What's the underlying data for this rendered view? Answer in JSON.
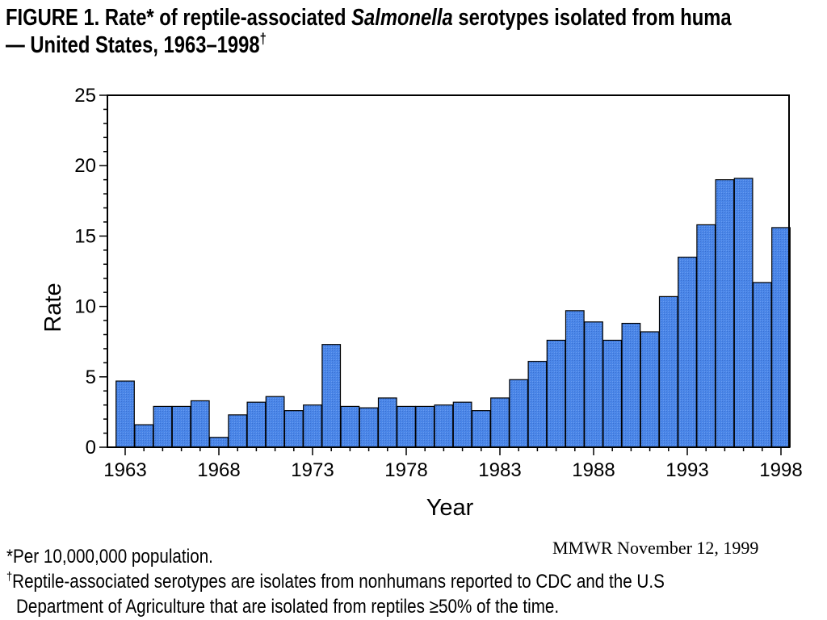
{
  "title": {
    "line1_prefix": "FIGURE 1. Rate* of reptile-associated ",
    "line1_italic": "Salmonella",
    "line1_suffix": "  serotypes isolated from huma",
    "line2": "— United States, 1963–1998",
    "line2_mark": "†"
  },
  "footnotes": {
    "note1": "*Per 10,000,000 population.",
    "note2_mark": "†",
    "note2_line1": "Reptile-associated serotypes are isolates from nonhumans reported to CDC and the U.S",
    "note2_line2": "Department of Agriculture that are isolated from reptiles ≥50% of the time."
  },
  "source": "MMWR November 12, 1999",
  "chart_data": {
    "type": "bar",
    "title": "FIGURE 1. Rate* of reptile-associated Salmonella serotypes isolated from huma — United States, 1963–1998†",
    "xlabel": "Year",
    "ylabel": "Rate",
    "ylim": [
      0,
      25
    ],
    "yticks": [
      "0",
      "5",
      "10",
      "15",
      "20",
      "25"
    ],
    "xticks": [
      "1963",
      "1968",
      "1973",
      "1978",
      "1983",
      "1988",
      "1993",
      "1998"
    ],
    "bar_color": "#4a86e8",
    "grid": false,
    "categories": [
      1963,
      1964,
      1965,
      1966,
      1967,
      1968,
      1969,
      1970,
      1971,
      1972,
      1973,
      1974,
      1975,
      1976,
      1977,
      1978,
      1979,
      1980,
      1981,
      1982,
      1983,
      1984,
      1985,
      1986,
      1987,
      1988,
      1989,
      1990,
      1991,
      1992,
      1993,
      1994,
      1995,
      1996,
      1997,
      1998
    ],
    "values": [
      4.7,
      1.6,
      2.9,
      2.9,
      3.3,
      0.7,
      2.3,
      3.2,
      3.6,
      2.6,
      3.0,
      7.3,
      2.9,
      2.8,
      3.5,
      2.9,
      2.9,
      3.0,
      3.2,
      2.6,
      3.5,
      4.8,
      6.1,
      7.6,
      9.7,
      8.9,
      7.6,
      8.8,
      8.2,
      10.7,
      13.5,
      15.8,
      19.0,
      19.1,
      11.7,
      15.6
    ]
  }
}
